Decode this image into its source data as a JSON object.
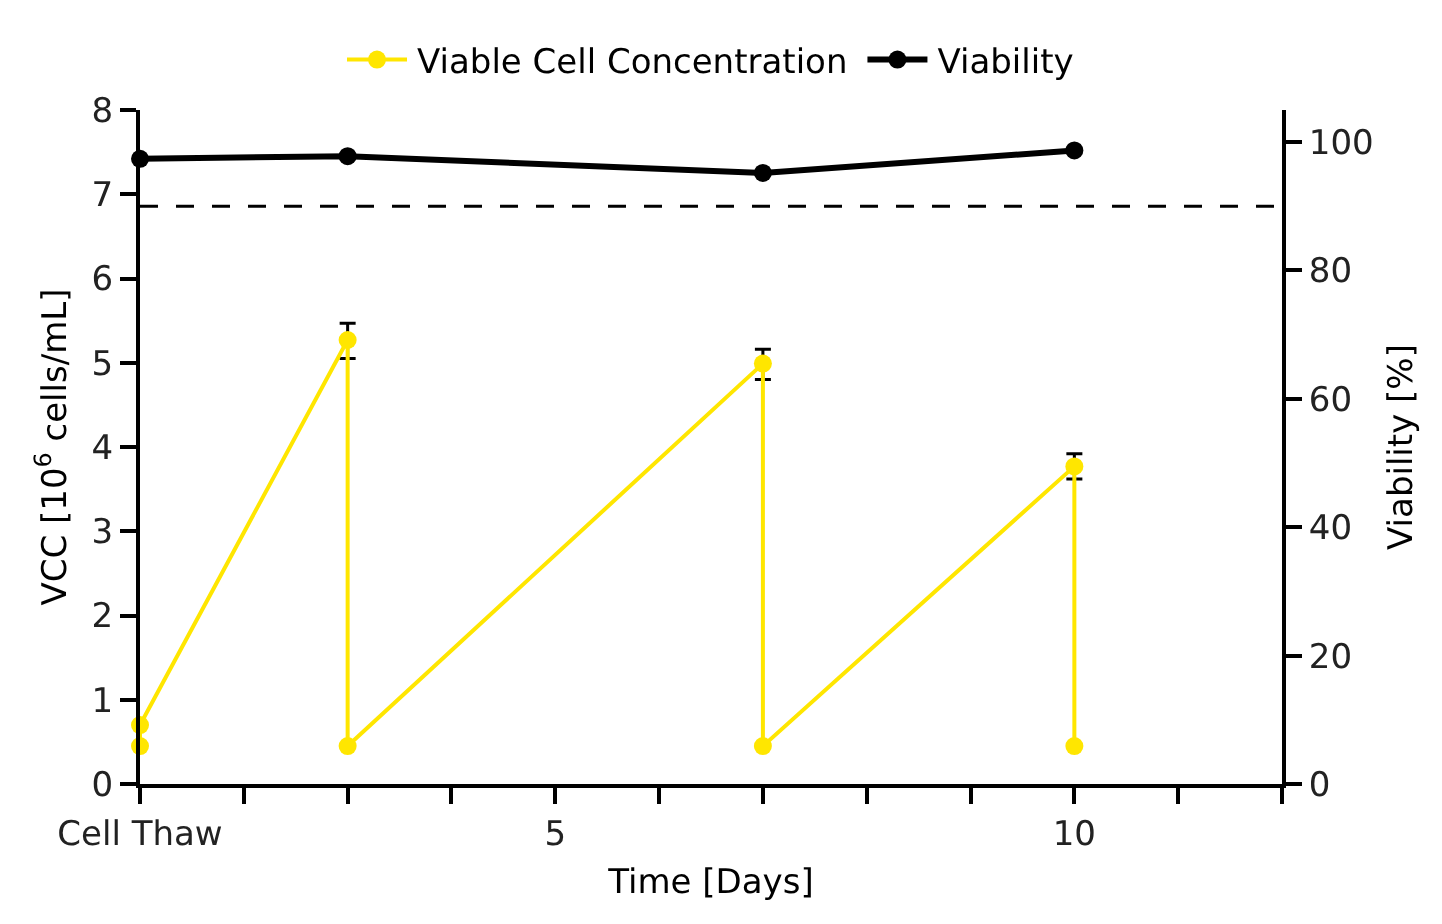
{
  "chart_data": {
    "type": "line",
    "xlabel": "Time [Days]",
    "ylabel": "VCC [10$^{6}$ cells/mL]",
    "y2label": "Viability [%]",
    "xlim": [
      1,
      12
    ],
    "xticks": [
      {
        "value": 1,
        "label": "Cell Thaw"
      },
      {
        "value": 2,
        "label": null
      },
      {
        "value": 3,
        "label": null
      },
      {
        "value": 4,
        "label": null
      },
      5,
      {
        "value": 6,
        "label": null
      },
      {
        "value": 7,
        "label": null
      },
      {
        "value": 8,
        "label": null
      },
      {
        "value": 9,
        "label": null
      },
      10,
      {
        "value": 11,
        "label": null
      },
      {
        "value": 12,
        "label": null
      }
    ],
    "ylim": [
      0,
      8
    ],
    "yticks": [
      0,
      1,
      2,
      3,
      4,
      5,
      6,
      7,
      8
    ],
    "y2lim": [
      0,
      105
    ],
    "y2ticks": [
      0,
      20,
      40,
      60,
      80,
      100
    ],
    "series": [
      {
        "name": "Viable Cell Concentration",
        "color": "#ffe600",
        "x": [
          1,
          1,
          3,
          3,
          7,
          7,
          10,
          10
        ],
        "values": [
          0.45,
          0.7,
          5.27,
          0.45,
          4.99,
          0.45,
          3.77,
          0.45
        ],
        "errors": [
          null,
          null,
          [
            5.05,
            5.47
          ],
          null,
          [
            4.8,
            5.16
          ],
          null,
          [
            3.62,
            3.92
          ],
          null
        ]
      },
      {
        "name": "Viability",
        "color": "#000000",
        "axis": "y2",
        "x": [
          1,
          3,
          7,
          10
        ],
        "values": [
          97.4,
          97.8,
          95.2,
          98.7
        ]
      }
    ],
    "ref_lines": [
      {
        "axis": "y2",
        "value": 90,
        "label": null,
        "color": "#000000",
        "line_style": "dashed"
      }
    ],
    "legend": "top",
    "marker": "circle",
    "line_style": "solid"
  }
}
